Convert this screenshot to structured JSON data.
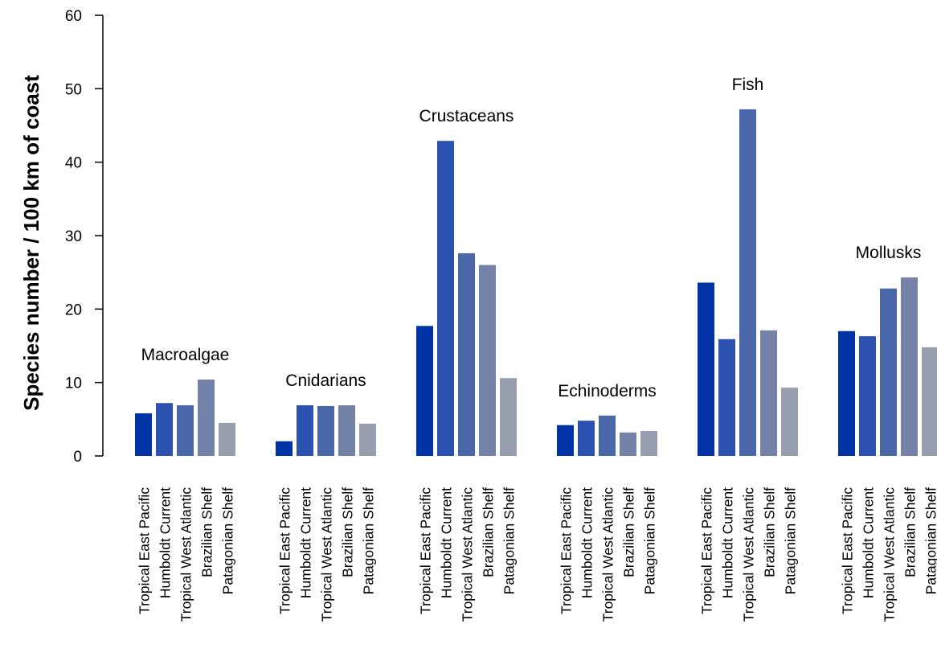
{
  "chart_data": {
    "type": "bar",
    "ylabel": "Species number / 100 km of coast",
    "xlabel": "",
    "ylim": [
      0,
      60
    ],
    "yticks": [
      0,
      10,
      20,
      30,
      40,
      50,
      60
    ],
    "grid": false,
    "categories": [
      "Tropical East Pacific",
      "Humboldt Current",
      "Tropical West Atlantic",
      "Brazilian Shelf",
      "Patagonian Shelf"
    ],
    "colors": [
      "#0033a6",
      "#2b52b0",
      "#4a67aa",
      "#7482a8",
      "#979eae"
    ],
    "groups": [
      {
        "name": "Macroalgae",
        "values": [
          5.8,
          7.2,
          6.9,
          10.4,
          4.5
        ]
      },
      {
        "name": "Cnidarians",
        "values": [
          2.0,
          6.9,
          6.8,
          6.9,
          4.4
        ]
      },
      {
        "name": "Crustaceans",
        "values": [
          17.7,
          42.9,
          27.6,
          26.0,
          10.6
        ]
      },
      {
        "name": "Echinoderms",
        "values": [
          4.2,
          4.8,
          5.5,
          3.2,
          3.4
        ]
      },
      {
        "name": "Fish",
        "values": [
          23.6,
          15.9,
          47.2,
          17.1,
          9.3
        ]
      },
      {
        "name": "Mollusks",
        "values": [
          17.0,
          16.3,
          22.8,
          24.3,
          14.8
        ]
      }
    ]
  }
}
